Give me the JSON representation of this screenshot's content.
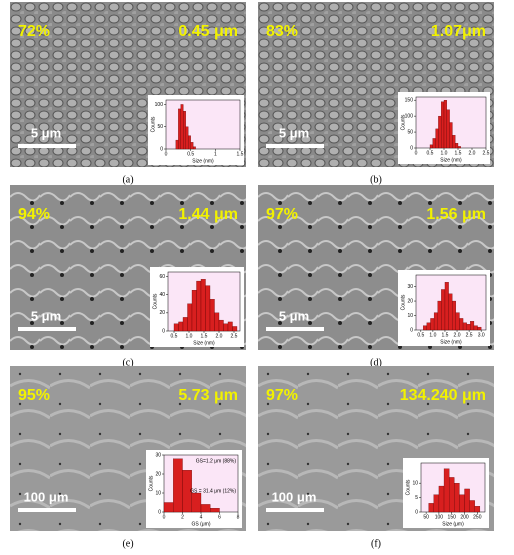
{
  "panels": [
    {
      "label": "(a)",
      "density": "72%",
      "grain_size": "0.45 μm",
      "scale_bar": "5 μm",
      "histogram": {
        "x_label": "Size (nm)",
        "y_label": "Counts",
        "xlim": [
          0,
          1.5
        ],
        "xticks": [
          0,
          0.5,
          1,
          1.5
        ],
        "ylim": [
          0,
          110
        ],
        "yticks": [
          0,
          50,
          100
        ],
        "bins": [
          0.2,
          0.25,
          0.3,
          0.35,
          0.4,
          0.45,
          0.5,
          0.55,
          0.6
        ],
        "counts": [
          20,
          90,
          100,
          85,
          50,
          30,
          15,
          5
        ]
      }
    },
    {
      "label": "(b)",
      "density": "83%",
      "grain_size": "1.07μm",
      "scale_bar": "5 μm",
      "histogram": {
        "x_label": "Size (nm)",
        "y_label": "Counts",
        "xlim": [
          0,
          2.5
        ],
        "xticks": [
          0,
          {
            "value": 0.5,
            "label": "0.5"
          },
          {
            "value": 1,
            "label": "1.0"
          },
          1.5,
          {
            "value": 2,
            "label": "2.0"
          },
          2.5
        ],
        "ylim": [
          0,
          160
        ],
        "yticks": [
          0,
          50,
          100,
          150
        ],
        "bins": [
          0.5,
          0.6,
          0.7,
          0.8,
          0.9,
          1.0,
          1.1,
          1.2,
          1.3,
          1.4,
          1.5,
          1.6
        ],
        "counts": [
          10,
          30,
          60,
          100,
          145,
          150,
          120,
          80,
          40,
          15,
          5
        ]
      }
    },
    {
      "label": "(c)",
      "density": "94%",
      "grain_size": "1.44 μm",
      "scale_bar": "5 μm",
      "histogram": {
        "x_label": "Size (nm)",
        "y_label": "Counts",
        "xlim": [
          0.3,
          2.7
        ],
        "xticks": [
          0.5,
          {
            "value": 1,
            "label": "1.0"
          },
          1.5,
          {
            "value": 2,
            "label": "2.0"
          },
          2.5
        ],
        "ylim": [
          0,
          65
        ],
        "yticks": [
          0,
          20,
          40,
          60
        ],
        "bins": [
          0.5,
          0.65,
          0.8,
          0.95,
          1.1,
          1.25,
          1.4,
          1.55,
          1.7,
          1.85,
          2.0,
          2.15,
          2.3,
          2.45,
          2.6
        ],
        "counts": [
          8,
          10,
          15,
          30,
          45,
          55,
          57,
          50,
          35,
          20,
          12,
          8,
          10,
          5
        ]
      }
    },
    {
      "label": "(d)",
      "density": "97%",
      "grain_size": "1.56 μm",
      "scale_bar": "5 μm",
      "histogram": {
        "x_label": "Size (nm)",
        "y_label": "Counts",
        "xlim": [
          0.3,
          3.2
        ],
        "xticks": [
          0.5,
          {
            "value": 1,
            "label": "1.0"
          },
          1.5,
          {
            "value": 2,
            "label": "2.0"
          },
          2.5,
          {
            "value": 3,
            "label": "3.0"
          }
        ],
        "ylim": [
          0,
          38
        ],
        "yticks": [
          0,
          10,
          20,
          30
        ],
        "bins": [
          0.6,
          0.75,
          0.9,
          1.05,
          1.2,
          1.35,
          1.5,
          1.65,
          1.8,
          1.95,
          2.1,
          2.25,
          2.4,
          2.55,
          2.7,
          2.85,
          3.0
        ],
        "counts": [
          3,
          5,
          8,
          12,
          20,
          28,
          33,
          25,
          20,
          12,
          8,
          5,
          4,
          6,
          3,
          2
        ]
      }
    },
    {
      "label": "(e)",
      "density": "95%",
      "grain_size": "5.73 μm",
      "scale_bar": "100 μm",
      "histogram": {
        "x_label": "GS (μm)",
        "y_label": "Counts",
        "xlim": [
          0,
          8
        ],
        "xticks": [
          0,
          2,
          4,
          6,
          8
        ],
        "ylim": [
          0,
          30
        ],
        "yticks": [
          0,
          10,
          20,
          30
        ],
        "bins": [
          0,
          1,
          2,
          3,
          4,
          5,
          6
        ],
        "counts": [
          5,
          28,
          22,
          10,
          4,
          2
        ],
        "annotations": [
          "GS=1.2 μm (88%)",
          "GS = 31.4 μm (12%)"
        ]
      }
    },
    {
      "label": "(f)",
      "density": "97%",
      "grain_size": "134.240 μm",
      "scale_bar": "100 μm",
      "histogram": {
        "x_label": "Size (μm)",
        "y_label": "Counts",
        "xlim": [
          30,
          280
        ],
        "xticks": [
          50,
          100,
          150,
          200,
          250
        ],
        "ylim": [
          0,
          17
        ],
        "yticks": [
          0,
          5,
          10
        ],
        "bins": [
          60,
          80,
          100,
          120,
          140,
          160,
          180,
          200,
          220,
          240,
          260
        ],
        "counts": [
          3,
          6,
          9,
          15,
          12,
          10,
          6,
          8,
          4,
          2
        ]
      }
    }
  ]
}
